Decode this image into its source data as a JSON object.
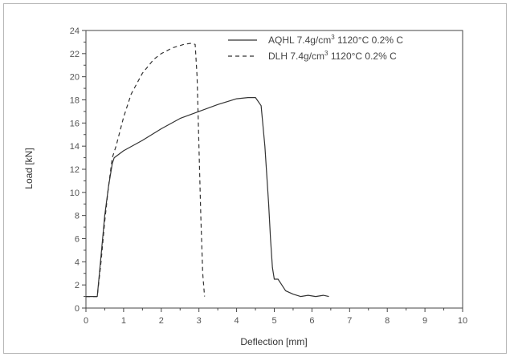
{
  "chart_data": {
    "type": "line",
    "title": "",
    "xlabel": "Deflection [mm]",
    "ylabel": "Load [kN]",
    "xlim": [
      0,
      10
    ],
    "ylim": [
      0,
      24
    ],
    "x_ticks": [
      0,
      1,
      2,
      3,
      4,
      5,
      6,
      7,
      8,
      9,
      10
    ],
    "y_ticks": [
      0,
      2,
      4,
      6,
      8,
      10,
      12,
      14,
      16,
      18,
      20,
      22,
      24
    ],
    "grid": false,
    "legend_position": "top-right",
    "series": [
      {
        "name": "AQHL 7.4g/cm³ 1120°C 0.2% C",
        "legend_main": "AQHL 7.4g/cm",
        "legend_sup": "3",
        "legend_rest": " 1120°C 0.2% C",
        "line_style": "solid",
        "color": "#333333",
        "x": [
          0.0,
          0.3,
          0.4,
          0.5,
          0.6,
          0.7,
          0.75,
          1.0,
          1.5,
          2.0,
          2.5,
          3.0,
          3.5,
          4.0,
          4.3,
          4.5,
          4.65,
          4.75,
          4.85,
          4.9,
          4.95,
          5.0,
          5.1,
          5.2,
          5.3,
          5.5,
          5.7,
          5.9,
          6.1,
          6.3,
          6.45
        ],
        "y": [
          1.0,
          1.0,
          4.5,
          8.0,
          10.5,
          12.5,
          13.0,
          13.6,
          14.5,
          15.5,
          16.4,
          17.0,
          17.6,
          18.1,
          18.2,
          18.2,
          17.5,
          14.0,
          9.0,
          6.0,
          3.5,
          2.5,
          2.5,
          2.0,
          1.5,
          1.2,
          1.0,
          1.1,
          1.0,
          1.1,
          1.0
        ]
      },
      {
        "name": "DLH 7.4g/cm³ 1120°C 0.2% C",
        "legend_main": "DLH 7.4g/cm",
        "legend_sup": "3",
        "legend_rest": " 1120°C 0.2% C",
        "line_style": "dashed",
        "color": "#333333",
        "x": [
          0.0,
          0.3,
          0.4,
          0.5,
          0.6,
          0.7,
          0.8,
          1.0,
          1.2,
          1.5,
          1.8,
          2.0,
          2.3,
          2.6,
          2.8,
          2.9,
          2.95,
          3.0,
          3.05,
          3.1,
          3.15
        ],
        "y": [
          1.0,
          1.0,
          4.0,
          7.5,
          10.5,
          13.0,
          14.0,
          16.5,
          18.5,
          20.3,
          21.5,
          22.0,
          22.5,
          22.8,
          22.9,
          22.8,
          20.0,
          14.0,
          8.0,
          3.0,
          1.0
        ]
      }
    ]
  }
}
